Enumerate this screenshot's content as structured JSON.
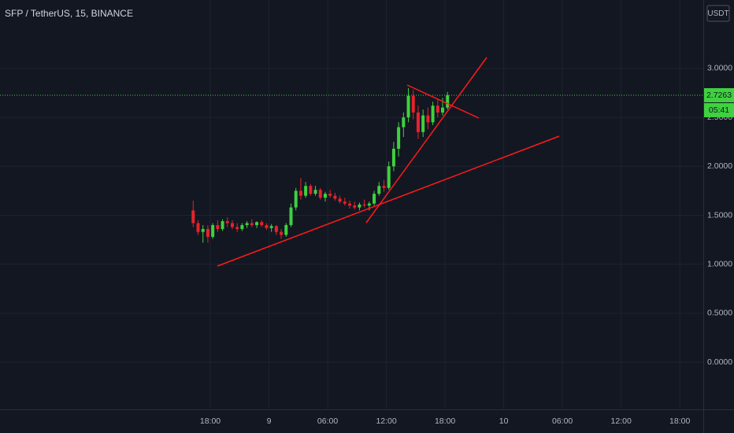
{
  "chart_data": {
    "type": "candlestick",
    "title": "SFP / TetherUS, 15, BINANCE",
    "currency": "USDT",
    "x": [
      16.25,
      16.75,
      17.25,
      17.75,
      18.25,
      18.75,
      19.25,
      19.75,
      20.25,
      20.75,
      21.25,
      21.75,
      22.25,
      22.75,
      23.25,
      23.75,
      24.25,
      24.75,
      25.25,
      25.75,
      26.25,
      26.75,
      27.25,
      27.75,
      28.25,
      28.75,
      29.25,
      29.75,
      30.25,
      30.75,
      31.25,
      31.75,
      32.25,
      32.75,
      33.25,
      33.75,
      34.25,
      34.75,
      35.25,
      35.75,
      36.25,
      36.75,
      37.25,
      37.75,
      38.25,
      38.75,
      39.25,
      39.75,
      40.25,
      40.75,
      41.25,
      41.75,
      42.25
    ],
    "open": [
      1.55,
      1.42,
      1.33,
      1.36,
      1.28,
      1.4,
      1.36,
      1.44,
      1.42,
      1.38,
      1.36,
      1.4,
      1.42,
      1.4,
      1.43,
      1.4,
      1.37,
      1.39,
      1.33,
      1.3,
      1.4,
      1.58,
      1.75,
      1.7,
      1.8,
      1.72,
      1.76,
      1.68,
      1.72,
      1.7,
      1.67,
      1.64,
      1.62,
      1.6,
      1.58,
      1.61,
      1.6,
      1.62,
      1.72,
      1.8,
      1.78,
      2.0,
      2.18,
      2.4,
      2.5,
      2.72,
      2.55,
      2.35,
      2.52,
      2.45,
      2.62,
      2.55,
      2.6
    ],
    "high": [
      1.65,
      1.45,
      1.4,
      1.4,
      1.42,
      1.45,
      1.46,
      1.48,
      1.45,
      1.42,
      1.42,
      1.44,
      1.46,
      1.44,
      1.45,
      1.42,
      1.41,
      1.4,
      1.36,
      1.42,
      1.62,
      1.78,
      1.88,
      1.84,
      1.82,
      1.8,
      1.78,
      1.74,
      1.76,
      1.73,
      1.7,
      1.68,
      1.65,
      1.64,
      1.63,
      1.66,
      1.64,
      1.75,
      1.84,
      1.86,
      2.05,
      2.25,
      2.45,
      2.55,
      2.8,
      2.78,
      2.62,
      2.58,
      2.6,
      2.66,
      2.68,
      2.7,
      2.76
    ],
    "low": [
      1.38,
      1.3,
      1.22,
      1.22,
      1.26,
      1.33,
      1.34,
      1.38,
      1.36,
      1.33,
      1.34,
      1.37,
      1.38,
      1.37,
      1.38,
      1.35,
      1.33,
      1.3,
      1.26,
      1.28,
      1.38,
      1.55,
      1.66,
      1.68,
      1.7,
      1.7,
      1.66,
      1.64,
      1.68,
      1.65,
      1.62,
      1.6,
      1.57,
      1.56,
      1.55,
      1.58,
      1.55,
      1.6,
      1.7,
      1.74,
      1.76,
      1.95,
      2.1,
      2.3,
      2.45,
      2.48,
      2.28,
      2.3,
      2.38,
      2.42,
      2.5,
      2.52,
      2.58
    ],
    "close": [
      1.42,
      1.33,
      1.36,
      1.28,
      1.4,
      1.36,
      1.44,
      1.42,
      1.38,
      1.36,
      1.4,
      1.42,
      1.4,
      1.43,
      1.4,
      1.37,
      1.39,
      1.33,
      1.3,
      1.4,
      1.58,
      1.75,
      1.7,
      1.8,
      1.72,
      1.76,
      1.68,
      1.72,
      1.7,
      1.67,
      1.64,
      1.62,
      1.6,
      1.58,
      1.61,
      1.6,
      1.62,
      1.72,
      1.8,
      1.78,
      2.0,
      2.18,
      2.4,
      2.5,
      2.72,
      2.55,
      2.35,
      2.52,
      2.45,
      2.62,
      2.55,
      2.6,
      2.7263
    ],
    "up_color": "#3fd13f",
    "down_color": "#e8222c",
    "xlim": [
      -3.5,
      68.4
    ],
    "ylim": [
      -0.482,
      3.699
    ],
    "xticks": [
      {
        "value": 18,
        "label": "18:00"
      },
      {
        "value": 24,
        "label": "9"
      },
      {
        "value": 30,
        "label": "06:00"
      },
      {
        "value": 36,
        "label": "12:00"
      },
      {
        "value": 42,
        "label": "18:00"
      },
      {
        "value": 48,
        "label": "10"
      },
      {
        "value": 54,
        "label": "06:00"
      },
      {
        "value": 60,
        "label": "12:00"
      },
      {
        "value": 66,
        "label": "18:00"
      }
    ],
    "yticks": [
      {
        "value": 0,
        "label": "0.0000"
      },
      {
        "value": 0.5,
        "label": "0.5000"
      },
      {
        "value": 1,
        "label": "1.0000"
      },
      {
        "value": 1.5,
        "label": "1.5000"
      },
      {
        "value": 2,
        "label": "2.0000"
      },
      {
        "value": 2.5,
        "label": "2.5000"
      },
      {
        "value": 3,
        "label": "3.0000"
      }
    ],
    "last_price": 2.7263,
    "countdown": "05:41",
    "grid": true
  }
}
